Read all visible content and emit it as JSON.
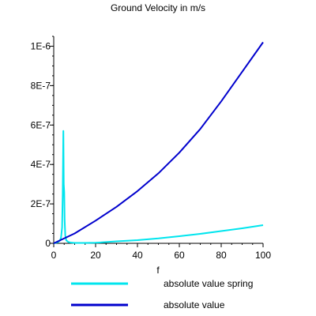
{
  "chart_data": {
    "type": "line",
    "title": "Ground Velocity in m/s",
    "xlabel": "f",
    "ylabel": "",
    "xlim": [
      0,
      100
    ],
    "ylim": [
      0,
      1.05e-06
    ],
    "x_ticks": [
      0,
      20,
      40,
      60,
      80,
      100
    ],
    "x_tick_labels": [
      "0",
      "20",
      "40",
      "60",
      "80",
      "100"
    ],
    "y_ticks": [
      0,
      2e-07,
      4e-07,
      6e-07,
      8e-07,
      1e-06
    ],
    "y_tick_labels": [
      "0",
      "2E-7",
      "4E-7",
      "6E-7",
      "8E-7",
      "1E-6"
    ],
    "grid": false,
    "legend_position": "bottom",
    "series": [
      {
        "name": "absolute value spring",
        "color": "#00e5ee",
        "x": [
          0,
          1,
          2,
          3,
          3.5,
          4,
          4.3,
          4.6,
          4.8,
          5,
          5.2,
          5.5,
          6,
          7,
          8,
          10,
          15,
          20,
          30,
          40,
          50,
          60,
          70,
          80,
          90,
          100
        ],
        "y": [
          0,
          3e-09,
          6e-09,
          1.5e-08,
          3e-08,
          8e-08,
          2.5e-07,
          5.7e-07,
          3e-07,
          2.6e-07,
          1.2e-07,
          4e-08,
          1.5e-08,
          7e-09,
          4e-09,
          2e-09,
          2e-09,
          3e-09,
          1e-08,
          1.6e-08,
          2.5e-08,
          3.6e-08,
          4.8e-08,
          6.2e-08,
          7.6e-08,
          9.2e-08
        ]
      },
      {
        "name": "absolute value",
        "color": "#0000cd",
        "x": [
          0,
          10,
          20,
          30,
          40,
          50,
          60,
          70,
          80,
          90,
          100
        ],
        "y": [
          0,
          5e-08,
          1.15e-07,
          1.85e-07,
          2.65e-07,
          3.55e-07,
          4.6e-07,
          5.8e-07,
          7.2e-07,
          8.7e-07,
          1.02e-06
        ]
      }
    ]
  }
}
